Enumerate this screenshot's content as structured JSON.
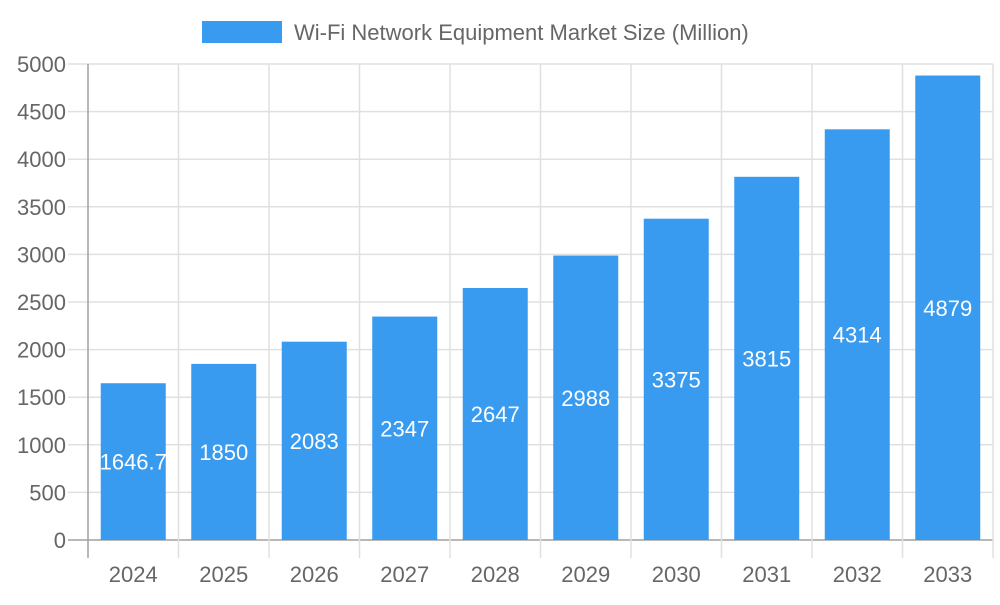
{
  "chart_data": {
    "type": "bar",
    "title": "",
    "xlabel": "",
    "ylabel": "",
    "categories": [
      "2024",
      "2025",
      "2026",
      "2027",
      "2028",
      "2029",
      "2030",
      "2031",
      "2032",
      "2033"
    ],
    "series": [
      {
        "name": "Wi-Fi Network Equipment Market Size (Million)",
        "values": [
          1646.7,
          1850,
          2083,
          2347,
          2647,
          2988,
          3375,
          3815,
          4314,
          4879
        ],
        "labels": [
          "1646.7",
          "1850",
          "2083",
          "2347",
          "2647",
          "2988",
          "3375",
          "3815",
          "4314",
          "4879"
        ]
      }
    ],
    "ylim": [
      0,
      5000
    ],
    "yticks": [
      "0",
      "500",
      "1000",
      "1500",
      "2000",
      "2500",
      "3000",
      "3500",
      "4000",
      "4500",
      "5000"
    ],
    "grid": true,
    "legend_position": "top",
    "colors": {
      "bar": "#389bef",
      "grid": "#e0e0e0",
      "axis": "#a0a0a0",
      "text": "#666666",
      "data_label": "#ffffff"
    }
  }
}
